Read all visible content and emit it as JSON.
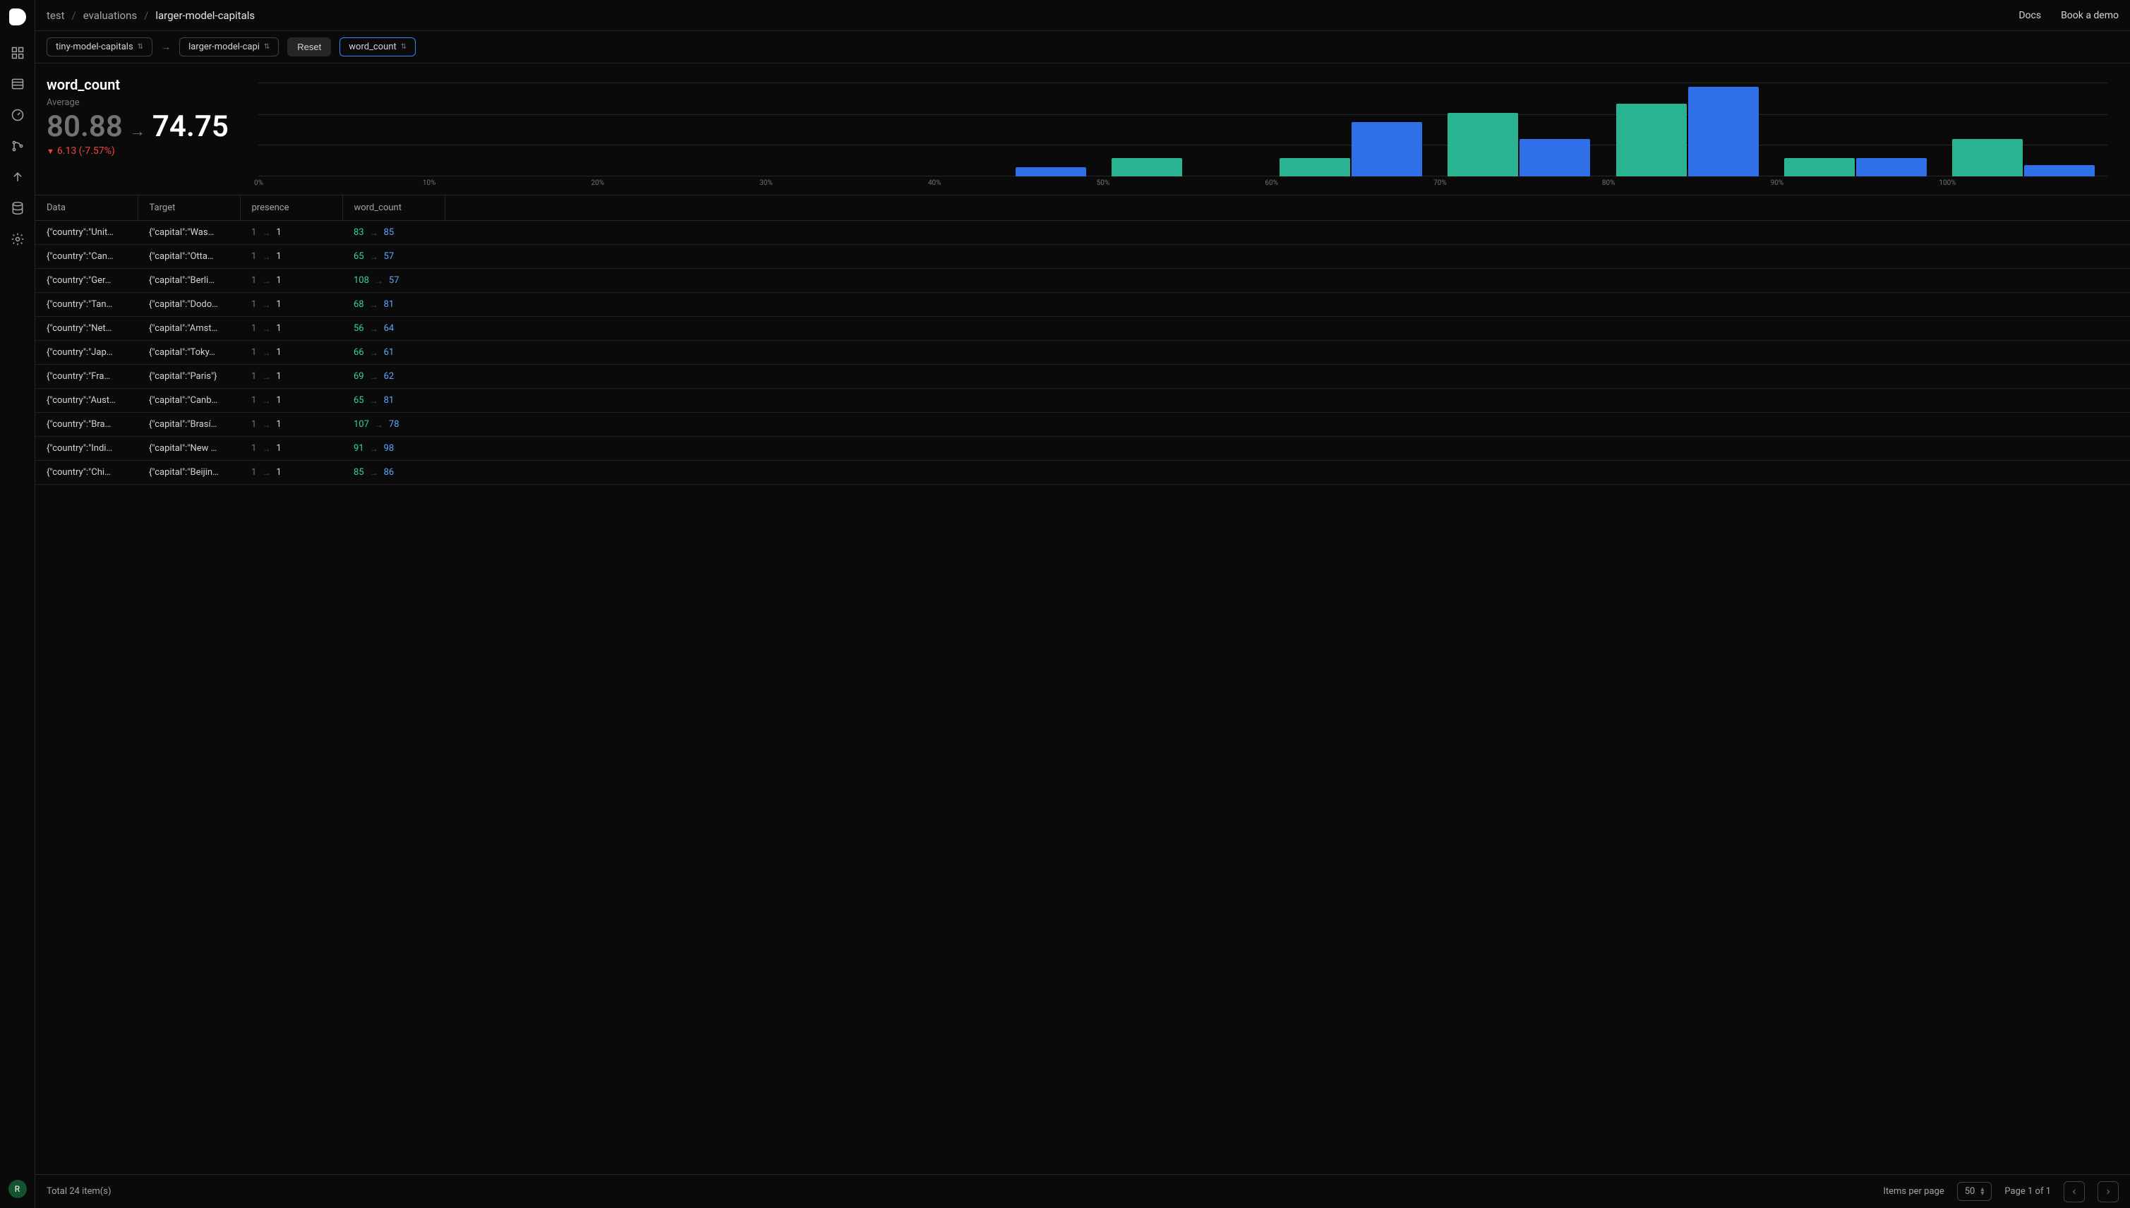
{
  "breadcrumb": {
    "items": [
      "test",
      "evaluations",
      "larger-model-capitals"
    ]
  },
  "topbar": {
    "docs": "Docs",
    "demo": "Book a demo"
  },
  "filter": {
    "left_pill": "tiny-model-capitals",
    "right_pill": "larger-model-capi",
    "reset": "Reset",
    "metric_pill": "word_count"
  },
  "metric": {
    "title": "word_count",
    "sub": "Average",
    "from": "80.88",
    "to": "74.75",
    "delta": "6.13 (-7.57%)"
  },
  "chart": {
    "type": "grouped-bar-histogram",
    "colors": {
      "series_a": "#2ab391",
      "series_b": "#2f6fe8",
      "grid": "#262626",
      "axis_text": "#737373"
    },
    "ylim": [
      0,
      100
    ],
    "grid_lines": [
      0,
      33,
      66,
      100
    ],
    "ticks": [
      "0%",
      "10%",
      "20%",
      "30%",
      "40%",
      "50%",
      "60%",
      "70%",
      "80%",
      "90%",
      "100%"
    ],
    "bins": [
      {
        "a": 0,
        "b": 0
      },
      {
        "a": 0,
        "b": 0
      },
      {
        "a": 0,
        "b": 0
      },
      {
        "a": 0,
        "b": 0
      },
      {
        "a": 0,
        "b": 10
      },
      {
        "a": 20,
        "b": 0
      },
      {
        "a": 20,
        "b": 58
      },
      {
        "a": 68,
        "b": 40
      },
      {
        "a": 78,
        "b": 96
      },
      {
        "a": 20,
        "b": 20
      },
      {
        "a": 40,
        "b": 12
      }
    ]
  },
  "table": {
    "columns": [
      "Data",
      "Target",
      "presence",
      "word_count"
    ],
    "rows": [
      {
        "data": "{\"country\":\"Unit…",
        "target": "{\"capital\":\"Was…",
        "p1": "1",
        "p2": "1",
        "w1": "83",
        "w2": "85"
      },
      {
        "data": "{\"country\":\"Can…",
        "target": "{\"capital\":\"Otta…",
        "p1": "1",
        "p2": "1",
        "w1": "65",
        "w2": "57"
      },
      {
        "data": "{\"country\":\"Ger…",
        "target": "{\"capital\":\"Berli…",
        "p1": "1",
        "p2": "1",
        "w1": "108",
        "w2": "57"
      },
      {
        "data": "{\"country\":\"Tan…",
        "target": "{\"capital\":\"Dodo…",
        "p1": "1",
        "p2": "1",
        "w1": "68",
        "w2": "81"
      },
      {
        "data": "{\"country\":\"Net…",
        "target": "{\"capital\":\"Amst…",
        "p1": "1",
        "p2": "1",
        "w1": "56",
        "w2": "64"
      },
      {
        "data": "{\"country\":\"Jap…",
        "target": "{\"capital\":\"Toky…",
        "p1": "1",
        "p2": "1",
        "w1": "66",
        "w2": "61"
      },
      {
        "data": "{\"country\":\"Fra…",
        "target": "{\"capital\":\"Paris\"}",
        "p1": "1",
        "p2": "1",
        "w1": "69",
        "w2": "62"
      },
      {
        "data": "{\"country\":\"Aust…",
        "target": "{\"capital\":\"Canb…",
        "p1": "1",
        "p2": "1",
        "w1": "65",
        "w2": "81"
      },
      {
        "data": "{\"country\":\"Bra…",
        "target": "{\"capital\":\"Brasí…",
        "p1": "1",
        "p2": "1",
        "w1": "107",
        "w2": "78"
      },
      {
        "data": "{\"country\":\"Indi…",
        "target": "{\"capital\":\"New …",
        "p1": "1",
        "p2": "1",
        "w1": "91",
        "w2": "98"
      },
      {
        "data": "{\"country\":\"Chi…",
        "target": "{\"capital\":\"Beijin…",
        "p1": "1",
        "p2": "1",
        "w1": "85",
        "w2": "86"
      }
    ]
  },
  "footer": {
    "total": "Total 24 item(s)",
    "items_per_page": "Items per page",
    "page_size": "50",
    "page_info": "Page 1 of 1"
  },
  "avatar": "R"
}
